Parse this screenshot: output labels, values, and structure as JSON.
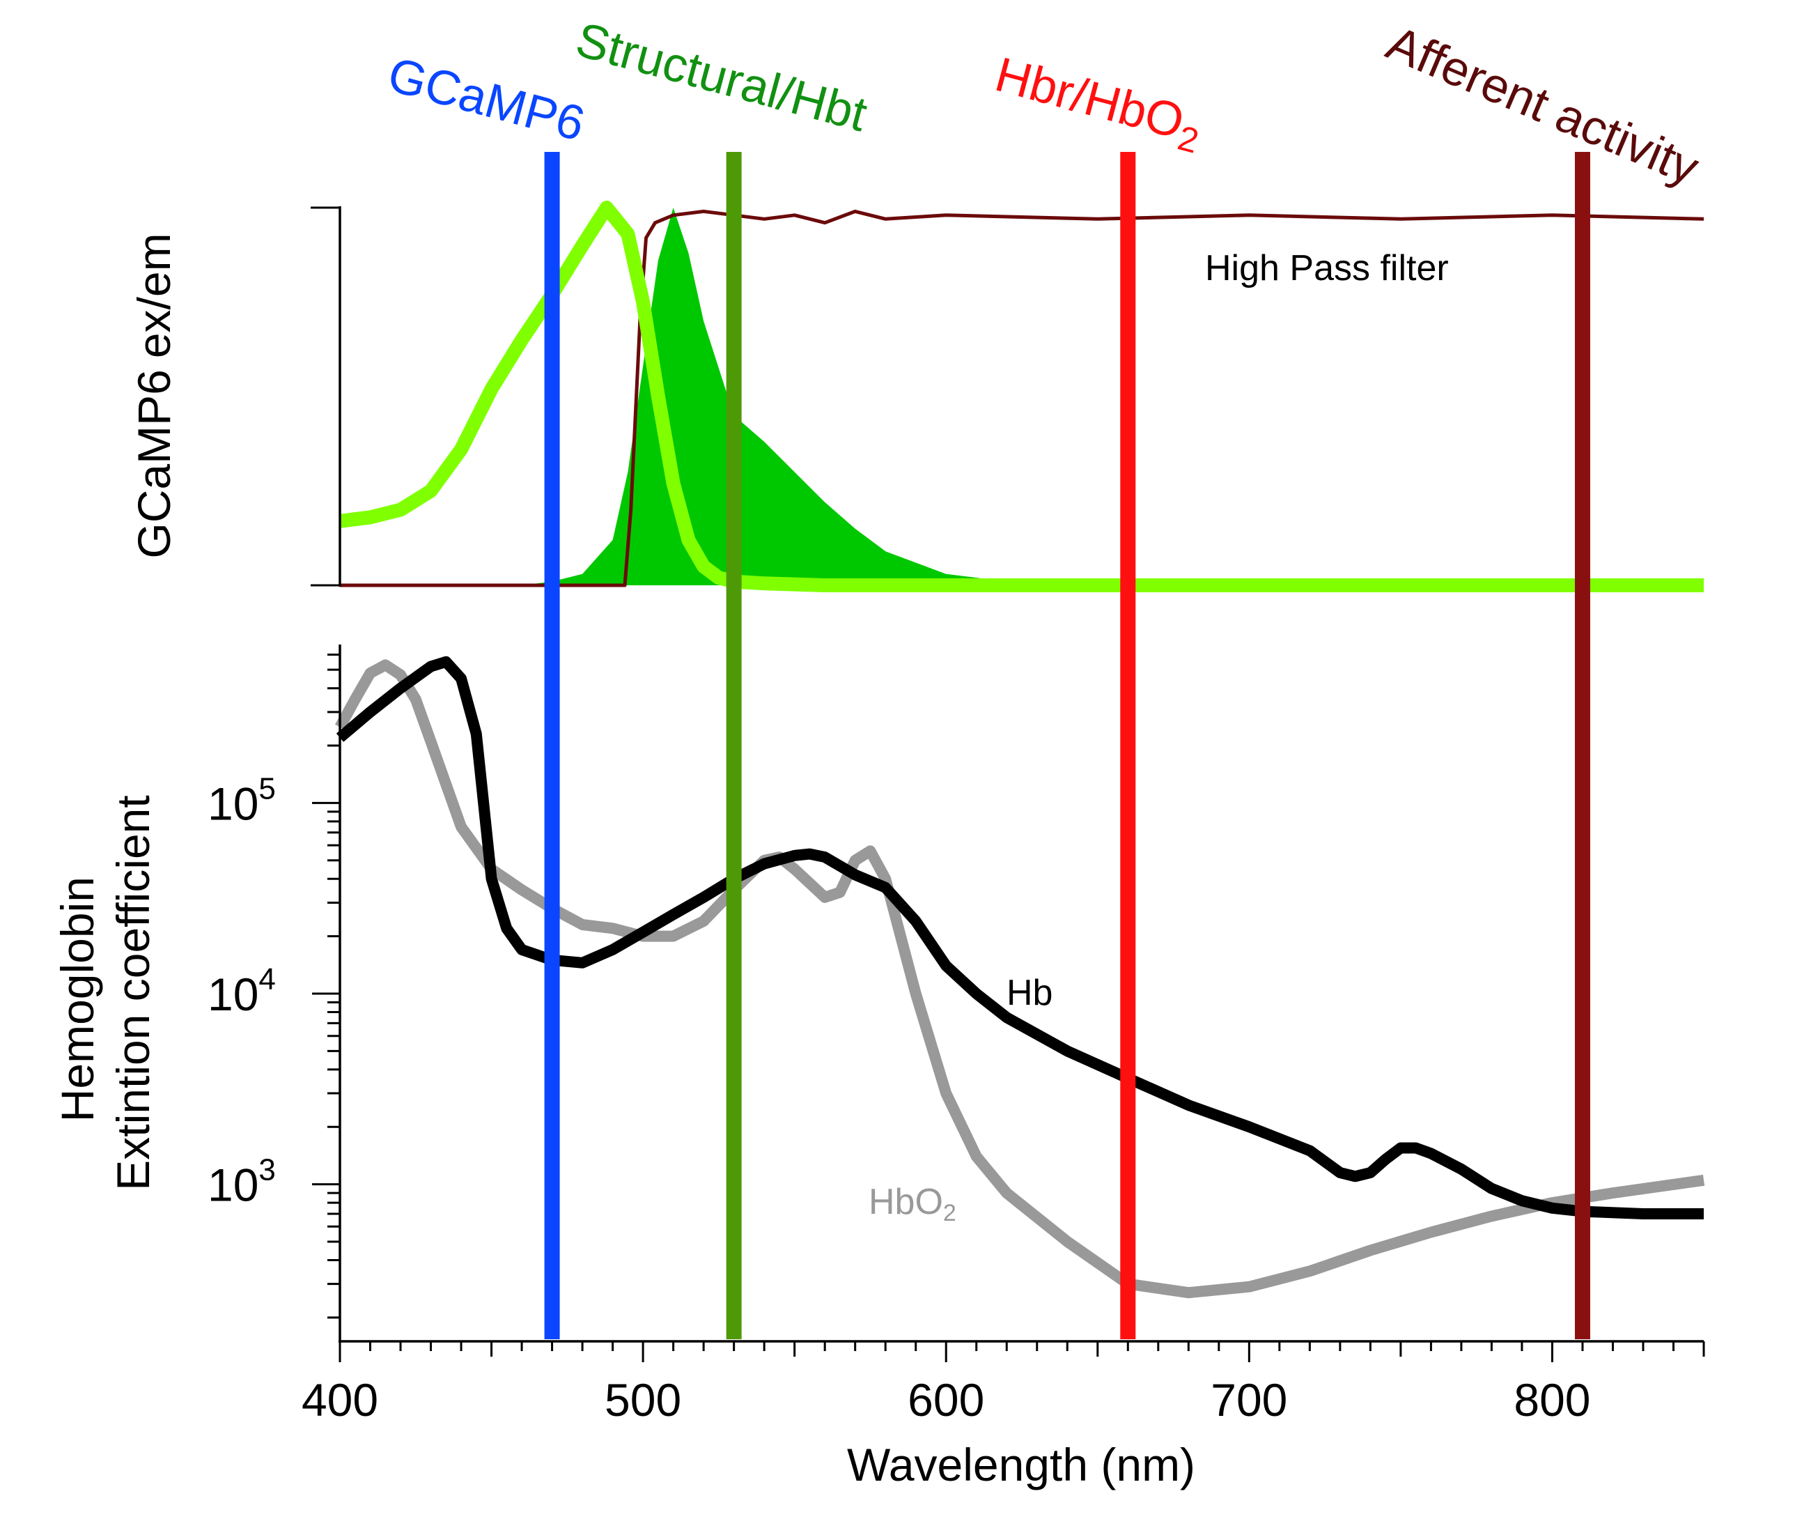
{
  "chart_data": [
    {
      "type": "line",
      "panel": "top",
      "ylabel_parts": [
        "GCaMP6",
        "ex",
        "/",
        "em"
      ],
      "ylabel_colors": [
        "#000000",
        "#80ff00",
        "#000000",
        "#00c000"
      ],
      "x_range": [
        400,
        850
      ],
      "y_range": [
        0,
        1
      ],
      "series": [
        {
          "key": "gcamp_ex",
          "color": "#80ff00",
          "x": [
            400,
            410,
            420,
            430,
            440,
            450,
            460,
            470,
            480,
            488,
            495,
            500,
            505,
            510,
            515,
            520,
            525,
            530,
            540,
            560,
            600,
            700,
            800,
            850
          ],
          "y": [
            0.17,
            0.18,
            0.2,
            0.25,
            0.36,
            0.52,
            0.65,
            0.77,
            0.9,
            1.0,
            0.93,
            0.75,
            0.5,
            0.27,
            0.12,
            0.05,
            0.02,
            0.01,
            0.005,
            0.0,
            0.0,
            0.0,
            0.0,
            0.0
          ]
        },
        {
          "key": "gcamp_em",
          "color": "#00c800",
          "x": [
            460,
            470,
            480,
            490,
            495,
            500,
            505,
            510,
            515,
            520,
            530,
            540,
            550,
            560,
            570,
            580,
            600,
            620,
            650,
            700
          ],
          "y": [
            0.0,
            0.01,
            0.03,
            0.12,
            0.3,
            0.58,
            0.86,
            1.0,
            0.88,
            0.7,
            0.45,
            0.38,
            0.3,
            0.22,
            0.15,
            0.09,
            0.03,
            0.01,
            0.0,
            0.0
          ]
        },
        {
          "name": "High Pass filter",
          "key": "highpass",
          "color": "#6b0a0a",
          "x": [
            400,
            480,
            494,
            496,
            499,
            501,
            504,
            510,
            520,
            530,
            540,
            550,
            560,
            570,
            580,
            600,
            650,
            700,
            750,
            800,
            850
          ],
          "y": [
            0.0,
            0.0,
            0.0,
            0.2,
            0.7,
            0.92,
            0.96,
            0.98,
            0.99,
            0.98,
            0.97,
            0.98,
            0.96,
            0.99,
            0.97,
            0.98,
            0.97,
            0.98,
            0.97,
            0.98,
            0.97
          ]
        }
      ]
    },
    {
      "type": "line",
      "panel": "bottom",
      "xlabel": "Wavelength (nm)",
      "ylabel_lines": [
        "Hemoglobin",
        "Extintion coefficient"
      ],
      "x_range": [
        400,
        850
      ],
      "yscale": "log",
      "y_range": [
        150,
        650000
      ],
      "xticks": [
        400,
        500,
        600,
        700,
        800
      ],
      "yticks": [
        {
          "base": "10",
          "exp": "3",
          "value": 1000
        },
        {
          "base": "10",
          "exp": "4",
          "value": 10000
        },
        {
          "base": "10",
          "exp": "5",
          "value": 100000
        }
      ],
      "series": [
        {
          "name": "Hb",
          "key": "hb",
          "color": "#000000",
          "x": [
            400,
            410,
            420,
            430,
            435,
            440,
            445,
            450,
            455,
            460,
            470,
            480,
            490,
            500,
            510,
            520,
            530,
            540,
            550,
            555,
            560,
            570,
            580,
            590,
            600,
            610,
            620,
            640,
            660,
            680,
            700,
            720,
            730,
            735,
            740,
            745,
            750,
            755,
            760,
            770,
            780,
            790,
            800,
            810,
            830,
            850
          ],
          "y": [
            220000,
            300000,
            400000,
            520000,
            550000,
            450000,
            230000,
            40000,
            22000,
            17000,
            15000,
            14500,
            17000,
            21000,
            26000,
            32000,
            40000,
            48000,
            53000,
            54000,
            52000,
            42000,
            36000,
            24000,
            14000,
            10000,
            7500,
            5000,
            3600,
            2600,
            2000,
            1500,
            1150,
            1100,
            1150,
            1350,
            1550,
            1550,
            1450,
            1200,
            950,
            820,
            750,
            720,
            700,
            700
          ]
        },
        {
          "name": "HbO",
          "name_sub": "2",
          "key": "hbo2",
          "color": "#999999",
          "x": [
            400,
            405,
            410,
            415,
            420,
            425,
            430,
            440,
            450,
            460,
            470,
            480,
            490,
            500,
            510,
            520,
            530,
            540,
            545,
            550,
            560,
            565,
            570,
            575,
            580,
            590,
            600,
            610,
            620,
            640,
            660,
            680,
            700,
            720,
            740,
            760,
            780,
            800,
            820,
            850
          ],
          "y": [
            250000,
            350000,
            480000,
            530000,
            470000,
            350000,
            210000,
            75000,
            45000,
            35000,
            28000,
            23000,
            22000,
            20000,
            20000,
            24000,
            35000,
            50000,
            52000,
            45000,
            32000,
            34000,
            50000,
            56000,
            40000,
            10000,
            3000,
            1400,
            900,
            500,
            300,
            270,
            290,
            350,
            450,
            560,
            680,
            800,
            900,
            1050
          ]
        }
      ]
    }
  ],
  "bands": [
    {
      "label": "GCaMP6",
      "wavelength": 470,
      "color": "#0a46ff"
    },
    {
      "label": "Structural/Hbt",
      "wavelength": 530,
      "color": "#4e9a06",
      "label_color": "#119011"
    },
    {
      "label": "Hbr/HbO",
      "label_sub": "2",
      "wavelength": 660,
      "color": "#ff1010"
    },
    {
      "label": "Afferent activity",
      "wavelength": 810,
      "color": "#8a1010",
      "label_color": "#5a0a0a"
    }
  ]
}
